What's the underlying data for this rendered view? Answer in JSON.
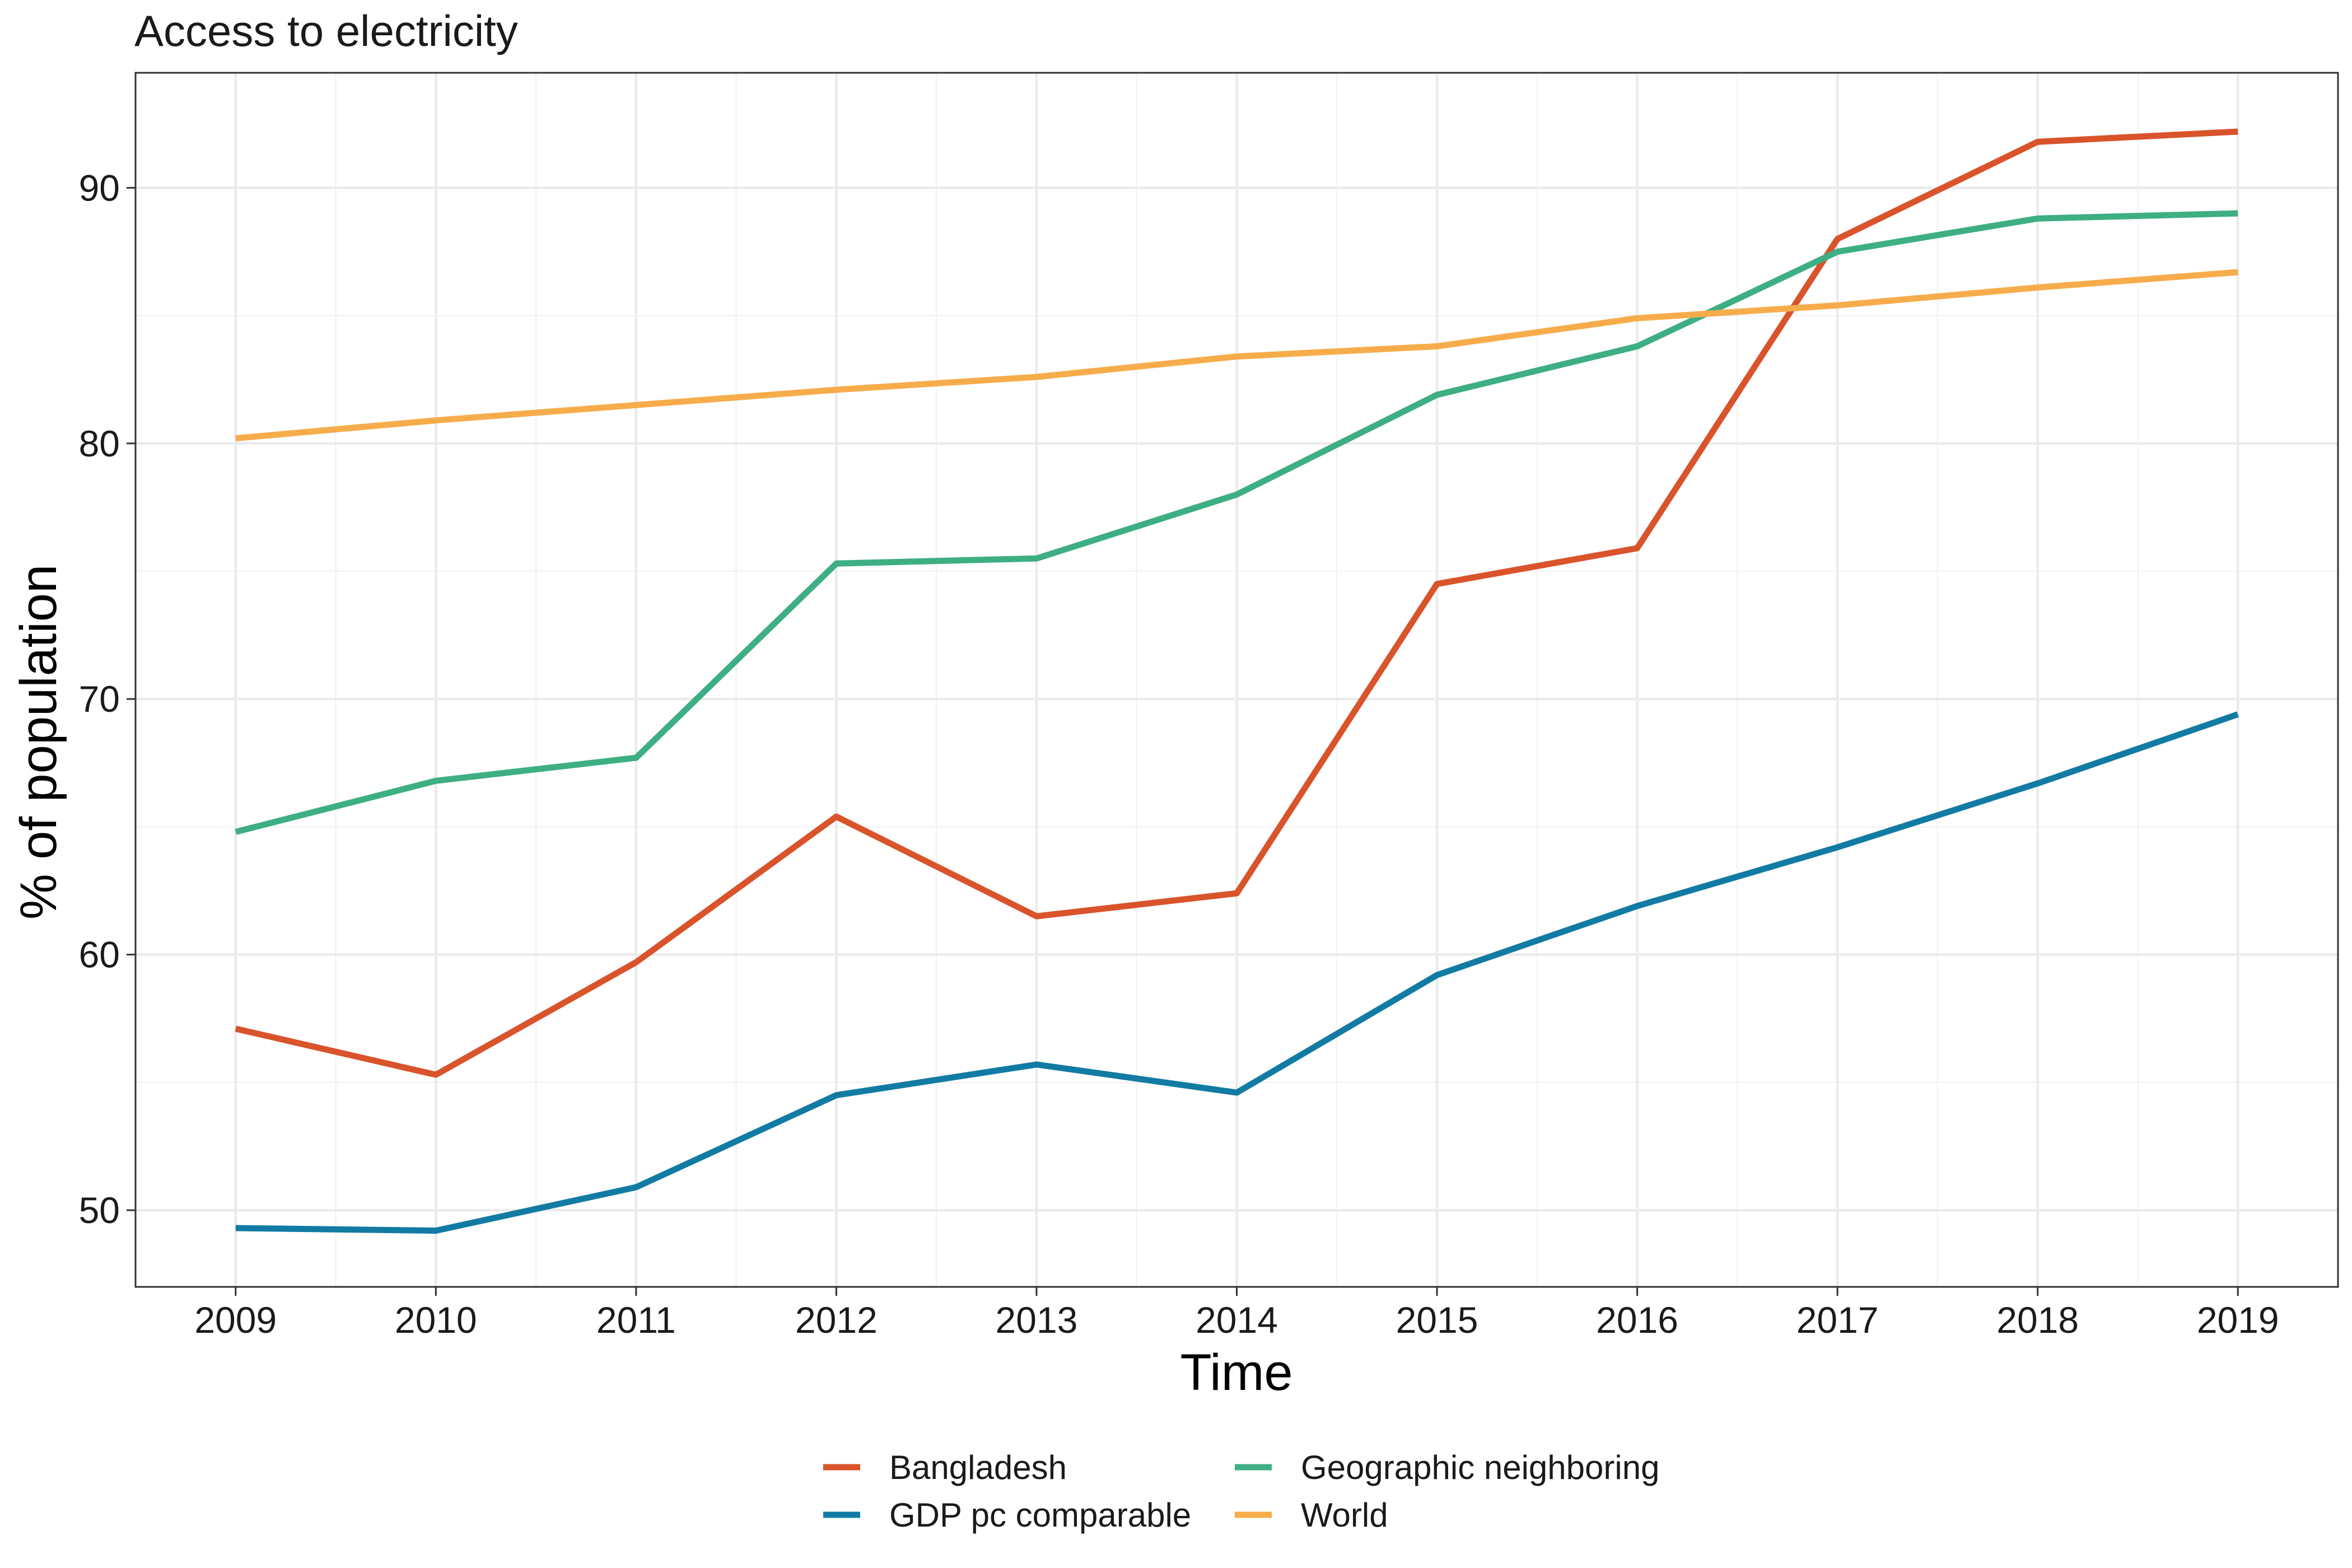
{
  "chart_data": {
    "type": "line",
    "title": "Access to electricity",
    "xlabel": "Time",
    "ylabel": "% of population",
    "x": [
      2009,
      2010,
      2011,
      2012,
      2013,
      2014,
      2015,
      2016,
      2017,
      2018,
      2019
    ],
    "xlim": [
      2008.5,
      2019.5
    ],
    "ylim": [
      47,
      94.5
    ],
    "yticks": [
      50,
      60,
      70,
      80,
      90
    ],
    "grid": true,
    "legend_position": "bottom",
    "series": [
      {
        "name": "Bangladesh",
        "color": "#d9532b",
        "values": [
          57.1,
          55.3,
          59.7,
          65.4,
          61.5,
          62.4,
          74.5,
          75.9,
          88.0,
          91.8,
          92.2
        ]
      },
      {
        "name": "GDP pc comparable",
        "color": "#127ba3",
        "values": [
          49.3,
          49.2,
          50.9,
          54.5,
          55.7,
          54.6,
          59.2,
          61.9,
          64.2,
          66.7,
          69.4
        ]
      },
      {
        "name": "Geographic neighboring",
        "color": "#3eae83",
        "values": [
          64.8,
          66.8,
          67.7,
          75.3,
          75.5,
          78.0,
          81.9,
          83.8,
          87.5,
          88.8,
          89.0
        ]
      },
      {
        "name": "World",
        "color": "#f7ac4b",
        "values": [
          80.2,
          80.9,
          81.5,
          82.1,
          82.6,
          83.4,
          83.8,
          84.9,
          85.4,
          86.1,
          86.7
        ]
      }
    ]
  }
}
